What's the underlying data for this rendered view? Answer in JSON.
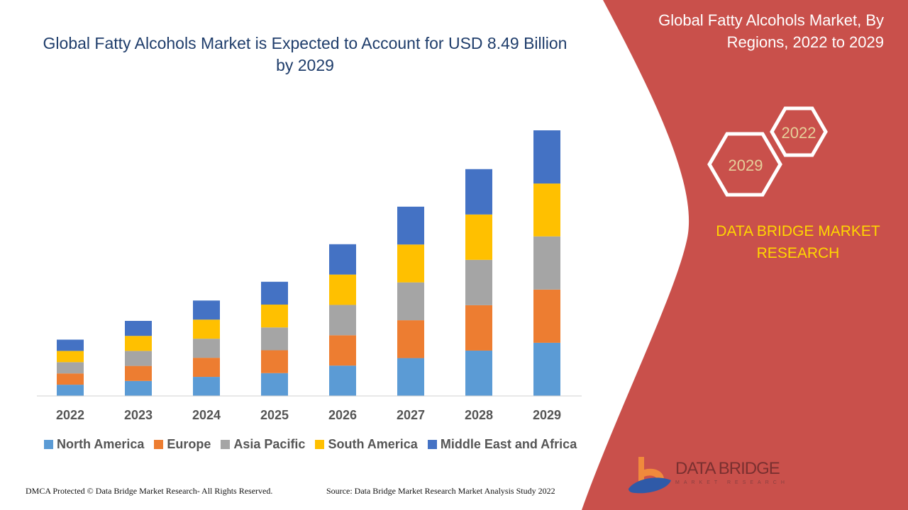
{
  "header": {
    "title": "Global Fatty Alcohols Market is Expected to Account for USD 8.49 Billion by 2029"
  },
  "side_panel": {
    "title": "Global Fatty Alcohols Market, By Regions, 2022 to 2029",
    "hex_labels": [
      "2022",
      "2029"
    ],
    "brand": "DATA BRIDGE MARKET RESEARCH",
    "logo": "DATA BRIDGE MARKET RESEARCH",
    "color": "#c9504b",
    "hex_text_color": "#e6cf9a"
  },
  "footer": {
    "left": "DMCA Protected © Data Bridge Market Research- All Rights Reserved.",
    "right": "Source: Data Bridge Market Research Market Analysis Study 2022"
  },
  "chart_data": {
    "type": "bar",
    "stacked": true,
    "title": "Global Fatty Alcohols Market is Expected to Account for USD 8.49 Billion by 2029",
    "categories": [
      "2022",
      "2023",
      "2024",
      "2025",
      "2026",
      "2027",
      "2028",
      "2029"
    ],
    "unit": "USD Billion",
    "grid": false,
    "legend": "bottom",
    "series": [
      {
        "name": "North America",
        "color": "#5b9bd5",
        "values": [
          0.36,
          0.48,
          0.61,
          0.73,
          0.97,
          1.21,
          1.45,
          1.7
        ]
      },
      {
        "name": "Europe",
        "color": "#ed7d31",
        "values": [
          0.36,
          0.48,
          0.61,
          0.73,
          0.97,
          1.21,
          1.45,
          1.7
        ]
      },
      {
        "name": "Asia Pacific",
        "color": "#a5a5a5",
        "values": [
          0.36,
          0.48,
          0.61,
          0.73,
          0.97,
          1.21,
          1.45,
          1.7
        ]
      },
      {
        "name": "South America",
        "color": "#ffc000",
        "values": [
          0.36,
          0.48,
          0.61,
          0.73,
          0.97,
          1.21,
          1.45,
          1.69
        ]
      },
      {
        "name": "Middle East and Africa",
        "color": "#4472c4",
        "values": [
          0.36,
          0.48,
          0.61,
          0.73,
          0.97,
          1.21,
          1.45,
          1.7
        ]
      }
    ]
  }
}
